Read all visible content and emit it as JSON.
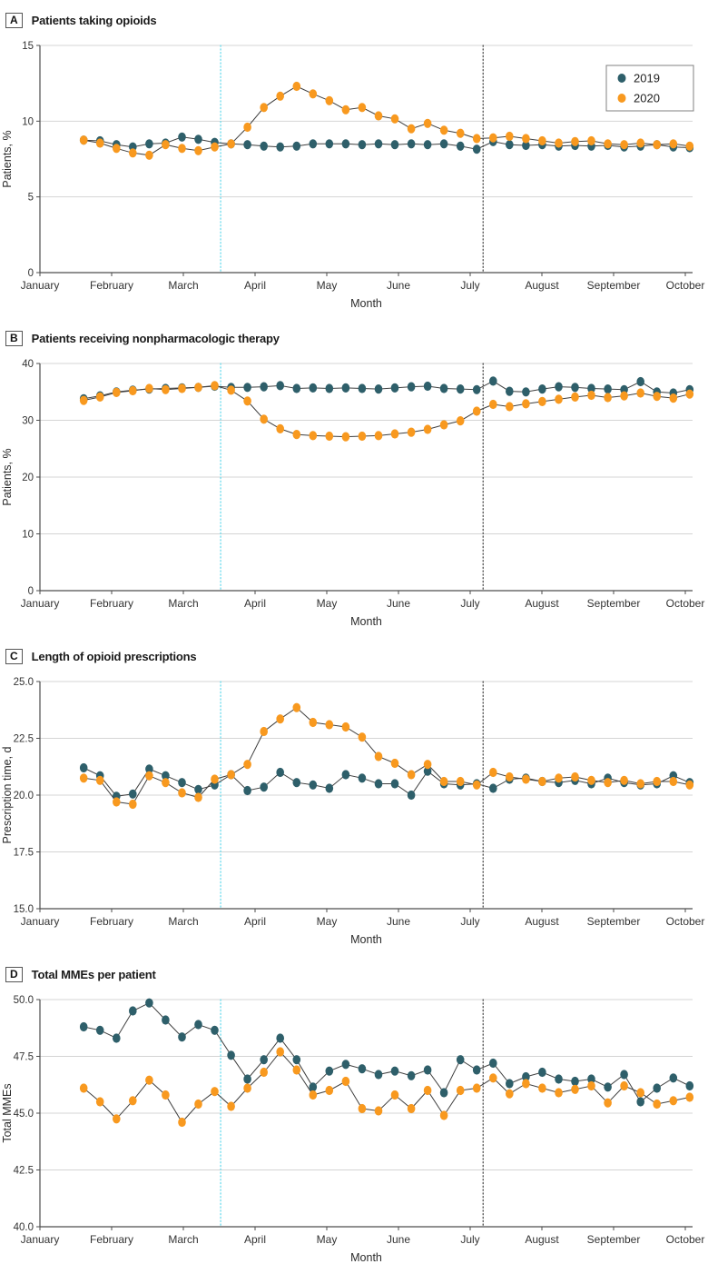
{
  "figure_name": "Opioid prescribing figure, four panels, weekly values 2019 vs 2020",
  "months_axis": {
    "label": "Month",
    "ticks": [
      "January",
      "February",
      "March",
      "April",
      "May",
      "June",
      "July",
      "August",
      "September",
      "October"
    ]
  },
  "legend": {
    "items": [
      {
        "label": "2019",
        "color": "#2E5F6A"
      },
      {
        "label": "2020",
        "color": "#F8991F"
      }
    ]
  },
  "colors": {
    "series_2019": "#2E5F6A",
    "series_2020": "#F8991F",
    "line": "#3f3f3f",
    "grid": "#d4d4d4",
    "axis": "#4d4d4d",
    "tick_text": "#333333",
    "ref_cyan": "#5FD8EC",
    "ref_dark": "#404040"
  },
  "week_x": {
    "start_month_index": 0.61,
    "month_step": 0.2284
  },
  "reference_lines": [
    {
      "name": "mid-march-line",
      "month_index": 2.52,
      "color": "#5FD8EC"
    },
    {
      "name": "early-july-line",
      "month_index": 6.18,
      "color": "#404040"
    }
  ],
  "chart_data": [
    {
      "type": "line",
      "panel_label": "A",
      "title": "Patients taking opioids",
      "ylabel": "Patients, %",
      "xlabel": "Month",
      "ylim": [
        0,
        15
      ],
      "legend": true,
      "yticks": [
        {
          "v": 0,
          "label": "0"
        },
        {
          "v": 5,
          "label": "5"
        },
        {
          "v": 10,
          "label": "10"
        },
        {
          "v": 15,
          "label": "15"
        }
      ],
      "series": [
        {
          "name": "2019",
          "color": "#2E5F6A",
          "values": [
            8.75,
            8.7,
            8.45,
            8.3,
            8.5,
            8.55,
            8.95,
            8.8,
            8.6,
            8.5,
            8.45,
            8.35,
            8.3,
            8.35,
            8.5,
            8.5,
            8.5,
            8.45,
            8.5,
            8.45,
            8.5,
            8.45,
            8.5,
            8.35,
            8.15,
            8.65,
            8.45,
            8.4,
            8.45,
            8.35,
            8.4,
            8.35,
            8.4,
            8.3,
            8.35,
            8.45,
            8.3,
            8.25
          ]
        },
        {
          "name": "2020",
          "color": "#F8991F",
          "values": [
            8.75,
            8.55,
            8.2,
            7.9,
            7.75,
            8.45,
            8.2,
            8.05,
            8.3,
            8.5,
            9.6,
            10.9,
            11.65,
            12.3,
            11.8,
            11.35,
            10.75,
            10.9,
            10.35,
            10.15,
            9.5,
            9.85,
            9.4,
            9.2,
            8.85,
            8.9,
            9.0,
            8.85,
            8.7,
            8.55,
            8.65,
            8.7,
            8.5,
            8.45,
            8.55,
            8.45,
            8.5,
            8.35
          ]
        }
      ]
    },
    {
      "type": "line",
      "panel_label": "B",
      "title": "Patients receiving nonpharmacologic therapy",
      "ylabel": "Patients, %",
      "xlabel": "Month",
      "ylim": [
        0,
        40
      ],
      "legend": false,
      "yticks": [
        {
          "v": 0,
          "label": "0"
        },
        {
          "v": 10,
          "label": "10"
        },
        {
          "v": 20,
          "label": "20"
        },
        {
          "v": 30,
          "label": "30"
        },
        {
          "v": 40,
          "label": "40"
        }
      ],
      "series": [
        {
          "name": "2019",
          "color": "#2E5F6A",
          "values": [
            33.8,
            34.3,
            35.0,
            35.3,
            35.5,
            35.6,
            35.7,
            35.8,
            36.0,
            35.8,
            35.8,
            35.9,
            36.1,
            35.6,
            35.7,
            35.6,
            35.7,
            35.6,
            35.5,
            35.7,
            35.9,
            36.0,
            35.6,
            35.5,
            35.4,
            36.9,
            35.1,
            35.0,
            35.5,
            35.9,
            35.8,
            35.6,
            35.5,
            35.4,
            36.8,
            35.0,
            34.8,
            35.4
          ]
        },
        {
          "name": "2020",
          "color": "#F8991F",
          "values": [
            33.5,
            34.1,
            34.9,
            35.2,
            35.6,
            35.4,
            35.6,
            35.8,
            36.1,
            35.3,
            33.4,
            30.2,
            28.5,
            27.5,
            27.3,
            27.2,
            27.1,
            27.2,
            27.3,
            27.6,
            27.9,
            28.4,
            29.2,
            29.9,
            31.6,
            32.8,
            32.4,
            32.9,
            33.3,
            33.7,
            34.1,
            34.4,
            34.0,
            34.3,
            34.8,
            34.2,
            33.9,
            34.6
          ]
        }
      ]
    },
    {
      "type": "line",
      "panel_label": "C",
      "title": "Length of opioid prescriptions",
      "ylabel": "Prescription time, d",
      "xlabel": "Month",
      "ylim": [
        15,
        25
      ],
      "legend": false,
      "yticks": [
        {
          "v": 15,
          "label": "15.0"
        },
        {
          "v": 17.5,
          "label": "17.5"
        },
        {
          "v": 20,
          "label": "20.0"
        },
        {
          "v": 22.5,
          "label": "22.5"
        },
        {
          "v": 25,
          "label": "25.0"
        }
      ],
      "series": [
        {
          "name": "2019",
          "color": "#2E5F6A",
          "values": [
            21.2,
            20.85,
            19.95,
            20.05,
            21.15,
            20.85,
            20.55,
            20.25,
            20.45,
            20.9,
            20.2,
            20.35,
            21.0,
            20.55,
            20.45,
            20.3,
            20.9,
            20.75,
            20.5,
            20.5,
            20.0,
            21.05,
            20.5,
            20.45,
            20.5,
            20.3,
            20.7,
            20.75,
            20.6,
            20.55,
            20.65,
            20.5,
            20.75,
            20.55,
            20.45,
            20.5,
            20.85,
            20.55
          ]
        },
        {
          "name": "2020",
          "color": "#F8991F",
          "values": [
            20.75,
            20.65,
            19.7,
            19.6,
            20.85,
            20.55,
            20.1,
            19.9,
            20.7,
            20.9,
            21.35,
            22.8,
            23.35,
            23.85,
            23.2,
            23.1,
            23.0,
            22.55,
            21.7,
            21.4,
            20.9,
            21.35,
            20.6,
            20.6,
            20.45,
            21.0,
            20.8,
            20.7,
            20.6,
            20.75,
            20.8,
            20.65,
            20.55,
            20.65,
            20.5,
            20.6,
            20.6,
            20.45
          ]
        }
      ]
    },
    {
      "type": "line",
      "panel_label": "D",
      "title": "Total MMEs per patient",
      "ylabel": "Total MMEs",
      "xlabel": "Month",
      "ylim": [
        40,
        50
      ],
      "legend": false,
      "yticks": [
        {
          "v": 40,
          "label": "40.0"
        },
        {
          "v": 42.5,
          "label": "42.5"
        },
        {
          "v": 45,
          "label": "45.0"
        },
        {
          "v": 47.5,
          "label": "47.5"
        },
        {
          "v": 50,
          "label": "50.0"
        }
      ],
      "series": [
        {
          "name": "2019",
          "color": "#2E5F6A",
          "values": [
            48.8,
            48.65,
            48.3,
            49.5,
            49.85,
            49.1,
            48.35,
            48.9,
            48.65,
            47.55,
            46.5,
            47.35,
            48.3,
            47.35,
            46.15,
            46.85,
            47.15,
            46.95,
            46.7,
            46.85,
            46.65,
            46.9,
            45.9,
            47.35,
            46.9,
            47.2,
            46.3,
            46.6,
            46.8,
            46.5,
            46.4,
            46.5,
            46.15,
            46.7,
            45.5,
            46.1,
            46.55,
            46.2
          ]
        },
        {
          "name": "2020",
          "color": "#F8991F",
          "values": [
            46.1,
            45.5,
            44.75,
            45.55,
            46.45,
            45.8,
            44.6,
            45.4,
            45.95,
            45.3,
            46.1,
            46.8,
            47.7,
            46.9,
            45.8,
            46.0,
            46.4,
            45.2,
            45.1,
            45.8,
            45.2,
            46.0,
            44.9,
            46.0,
            46.1,
            46.55,
            45.85,
            46.3,
            46.1,
            45.9,
            46.05,
            46.2,
            45.45,
            46.2,
            45.9,
            45.4,
            45.55,
            45.7
          ]
        }
      ]
    }
  ]
}
